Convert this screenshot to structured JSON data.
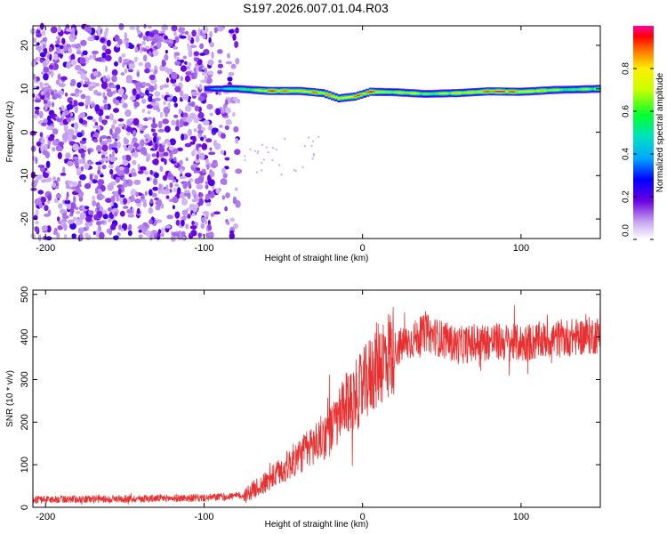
{
  "title": "S197.2026.007.01.04.R03",
  "colors": {
    "signal": "#e83030",
    "grid": "#000000"
  },
  "chart_data": [
    {
      "type": "heatmap",
      "title": "S197.2026.007.01.04.R03",
      "xlabel": "Height of straight line (km)",
      "ylabel": "Frequency (Hz)",
      "xlim": [
        -208,
        150
      ],
      "ylim": [
        -24.5,
        24.5
      ],
      "xticks": [
        -200,
        -100,
        0,
        100
      ],
      "yticks": [
        -20,
        -10,
        0,
        10,
        20
      ],
      "colorbar": {
        "label": "Normalized spectral amplitude",
        "range": [
          0.0,
          1.0
        ],
        "ticks": [
          0.0,
          0.2,
          0.4,
          0.6,
          0.8
        ],
        "tick_labels": [
          "0.0",
          "0.2",
          "0.4",
          "0.6",
          "0.8"
        ]
      },
      "noise_region": {
        "x_start": -208,
        "x_end": -78,
        "freq_range": [
          -24.5,
          24.5
        ],
        "amplitude": 0.15
      },
      "ridge": [
        {
          "x": -100,
          "freq": 10.0,
          "amp": 0.35
        },
        {
          "x": -80,
          "freq": 10.0,
          "amp": 0.55
        },
        {
          "x": -60,
          "freq": 9.5,
          "amp": 0.85
        },
        {
          "x": -40,
          "freq": 9.5,
          "amp": 0.9
        },
        {
          "x": -25,
          "freq": 9.0,
          "amp": 0.8
        },
        {
          "x": -15,
          "freq": 7.8,
          "amp": 0.92
        },
        {
          "x": -5,
          "freq": 8.2,
          "amp": 0.85
        },
        {
          "x": 5,
          "freq": 9.3,
          "amp": 0.9
        },
        {
          "x": 20,
          "freq": 9.2,
          "amp": 0.75
        },
        {
          "x": 40,
          "freq": 8.8,
          "amp": 0.7
        },
        {
          "x": 60,
          "freq": 9.0,
          "amp": 0.75
        },
        {
          "x": 80,
          "freq": 9.4,
          "amp": 0.95
        },
        {
          "x": 100,
          "freq": 9.3,
          "amp": 0.9
        },
        {
          "x": 120,
          "freq": 9.7,
          "amp": 0.7
        },
        {
          "x": 150,
          "freq": 10.0,
          "amp": 0.65
        }
      ]
    },
    {
      "type": "line",
      "title": "",
      "xlabel": "Height of straight line (km)",
      "ylabel": "SNR (10 * v/v)",
      "xlim": [
        -208,
        150
      ],
      "ylim": [
        0,
        510
      ],
      "xticks": [
        -200,
        -100,
        0,
        100
      ],
      "yticks": [
        0,
        100,
        200,
        300,
        400,
        500
      ],
      "series": [
        {
          "name": "SNR",
          "color": "#e83030",
          "trend": {
            "x": [
              -208,
              -150,
              -100,
              -75,
              -60,
              -40,
              -20,
              -10,
              0,
              10,
              20,
              40,
              60,
              80,
              100,
              120,
              150
            ],
            "y": [
              18,
              20,
              22,
              28,
              60,
              120,
              180,
              240,
              280,
              340,
              370,
              410,
              380,
              390,
              385,
              395,
              405
            ]
          },
          "points": 2000
        }
      ]
    }
  ]
}
